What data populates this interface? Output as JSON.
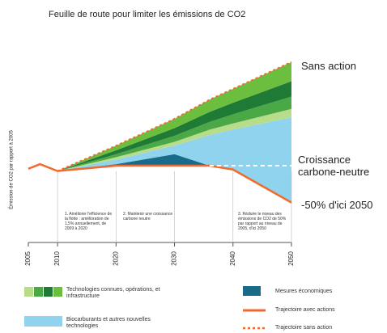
{
  "chart_data": {
    "type": "area",
    "title": "Feuille de route pour limiter les émissions de CO2",
    "y_label": "Émission de CO2 par rapport à 2005",
    "x": [
      2005,
      2007,
      2010,
      2020,
      2030,
      2036,
      2040,
      2050
    ],
    "xlim": [
      2005,
      2050
    ],
    "xticks": [
      2005,
      2010,
      2020,
      2030,
      2040,
      2050
    ],
    "ylim": [
      0,
      240
    ],
    "grid": true,
    "series": [
      {
        "name": "Trajectoire avec actions",
        "color": "#f26a2e",
        "style": "solid",
        "role": "base",
        "values": [
          96,
          102,
          93,
          100,
          100,
          100,
          95,
          52
        ]
      },
      {
        "name": "Trajectoire sans action",
        "color": "#f26a2e",
        "style": "dotted",
        "role": "line",
        "values": [
          null,
          null,
          93,
          126,
          161,
          186,
          200,
          235
        ]
      },
      {
        "name": "Croissance carbone-neutre",
        "color": "#ffffff",
        "style": "dashed",
        "role": "line",
        "values": [
          null,
          null,
          null,
          null,
          null,
          100,
          100,
          100
        ]
      },
      {
        "name": "Mesures économiques",
        "color": "#1a6b8a",
        "role": "stack",
        "values": [
          0,
          0,
          0,
          2,
          15,
          0,
          0,
          0
        ]
      },
      {
        "name": "Biocarburants et autres nouvelles technologies",
        "color": "#8fd3ef",
        "role": "stack",
        "values": [
          0,
          0,
          0,
          6,
          11,
          40,
          52,
          111
        ]
      },
      {
        "name": "Technologies connues, opérations, et infrastructure",
        "role": "stack-group",
        "colors": [
          "#b8dd8a",
          "#4aa847",
          "#1f7a35",
          "#6cbf3e"
        ],
        "values": [
          [
            0,
            0,
            0,
            3,
            5,
            7,
            8,
            11
          ],
          [
            0,
            0,
            0,
            4,
            8,
            10,
            12,
            16
          ],
          [
            0,
            0,
            0,
            5,
            10,
            13,
            15,
            20
          ],
          [
            0,
            0,
            0,
            6,
            12,
            16,
            18,
            25
          ]
        ]
      }
    ],
    "side_labels": [
      "Sans action",
      "Croissance carbone-neutre",
      "-50% d'ici 2050"
    ],
    "annotations": [
      "1. Améliorer l'efficience de la flotte : amélioration de 1,5% annuellement, de 2009 à 2020",
      "2. Maintenir une croissance carbone neutre",
      "3. Réduire le niveau des émissions de CO2 de 50% par rapport au niveau de 2005, d'ici 2050"
    ]
  }
}
